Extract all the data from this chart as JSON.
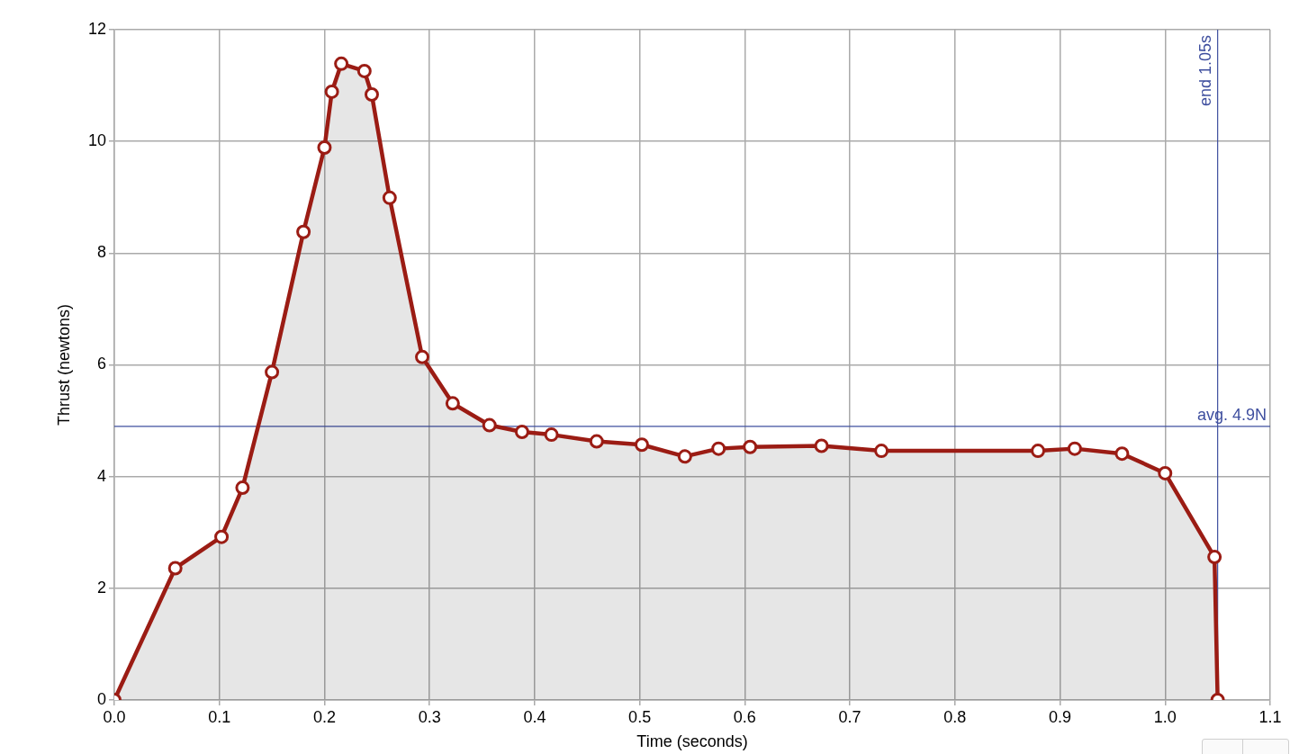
{
  "chart_data": {
    "type": "area",
    "xlabel": "Time (seconds)",
    "ylabel": "Thrust (newtons)",
    "x": [
      0,
      0.058,
      0.102,
      0.122,
      0.15,
      0.18,
      0.2,
      0.207,
      0.216,
      0.238,
      0.245,
      0.262,
      0.293,
      0.322,
      0.357,
      0.388,
      0.416,
      0.459,
      0.502,
      0.543,
      0.575,
      0.605,
      0.673,
      0.73,
      0.879,
      0.914,
      0.959,
      1.0,
      1.047,
      1.05
    ],
    "values": [
      0,
      2.36,
      2.92,
      3.8,
      5.87,
      8.38,
      9.89,
      10.89,
      11.39,
      11.26,
      10.84,
      8.99,
      6.14,
      5.31,
      4.92,
      4.8,
      4.75,
      4.63,
      4.57,
      4.36,
      4.5,
      4.53,
      4.55,
      4.46,
      4.46,
      4.5,
      4.41,
      4.06,
      2.56,
      0
    ],
    "color": "#9b1c14",
    "marker": "circle",
    "line_style": "solid",
    "xlim": [
      0,
      1.1
    ],
    "xticks": [
      {
        "value": 0,
        "label": "0.0"
      },
      0.1,
      0.2,
      0.3,
      0.4,
      0.5,
      0.6,
      0.7,
      0.8,
      0.9,
      {
        "value": 1,
        "label": "1.0"
      },
      1.1
    ],
    "ylim": [
      0,
      12
    ],
    "yticks": [
      0,
      2,
      4,
      6,
      8,
      10,
      12
    ],
    "grid": true,
    "ref_lines": [
      {
        "axis": "y",
        "value": 4.9,
        "label": "avg. 4.9N",
        "color": "#3f4f9f"
      },
      {
        "axis": "x",
        "value": 1.05,
        "label": "end 1.05s",
        "color": "#3f4f9f"
      }
    ]
  }
}
